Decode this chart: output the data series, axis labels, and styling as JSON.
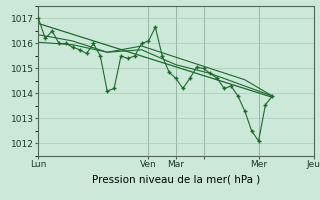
{
  "bg_color": "#cce8d8",
  "grid_color": "#aaccbb",
  "line_color": "#1a6b2a",
  "xlabel": "Pression niveau de la mer( hPa )",
  "ylim": [
    1011.5,
    1017.5
  ],
  "yticks": [
    1012,
    1013,
    1014,
    1015,
    1016,
    1017
  ],
  "xlim": [
    0,
    240
  ],
  "day_positions": [
    0,
    96,
    120,
    144,
    192,
    240
  ],
  "day_labels": [
    "Lun",
    "Ven",
    "Mar",
    "",
    "Mer",
    "Jeu"
  ],
  "series": [
    [
      0,
      1017.0
    ],
    [
      6,
      1016.2
    ],
    [
      12,
      1016.5
    ],
    [
      18,
      1016.0
    ],
    [
      24,
      1016.0
    ],
    [
      30,
      1015.85
    ],
    [
      36,
      1015.75
    ],
    [
      42,
      1015.6
    ],
    [
      48,
      1016.0
    ],
    [
      54,
      1015.5
    ],
    [
      60,
      1014.1
    ],
    [
      66,
      1014.2
    ],
    [
      72,
      1015.5
    ],
    [
      78,
      1015.4
    ],
    [
      84,
      1015.5
    ],
    [
      90,
      1016.0
    ],
    [
      96,
      1016.1
    ],
    [
      102,
      1016.65
    ],
    [
      108,
      1015.5
    ],
    [
      114,
      1014.85
    ],
    [
      120,
      1014.6
    ],
    [
      126,
      1014.2
    ],
    [
      132,
      1014.6
    ],
    [
      138,
      1015.05
    ],
    [
      144,
      1015.0
    ],
    [
      150,
      1014.8
    ],
    [
      156,
      1014.6
    ],
    [
      162,
      1014.2
    ],
    [
      168,
      1014.3
    ],
    [
      174,
      1013.9
    ],
    [
      180,
      1013.3
    ],
    [
      186,
      1012.5
    ],
    [
      192,
      1012.1
    ],
    [
      198,
      1013.55
    ],
    [
      204,
      1013.9
    ]
  ],
  "trend_line": [
    [
      0,
      1016.8
    ],
    [
      204,
      1013.85
    ]
  ],
  "smooth_line1": [
    [
      0,
      1016.05
    ],
    [
      30,
      1015.95
    ],
    [
      60,
      1015.65
    ],
    [
      90,
      1015.9
    ],
    [
      120,
      1015.45
    ],
    [
      150,
      1015.0
    ],
    [
      180,
      1014.55
    ],
    [
      204,
      1013.9
    ]
  ],
  "smooth_line2": [
    [
      0,
      1016.35
    ],
    [
      30,
      1016.1
    ],
    [
      60,
      1015.65
    ],
    [
      90,
      1015.75
    ],
    [
      120,
      1015.15
    ],
    [
      150,
      1014.8
    ],
    [
      180,
      1014.3
    ],
    [
      204,
      1013.9
    ]
  ]
}
